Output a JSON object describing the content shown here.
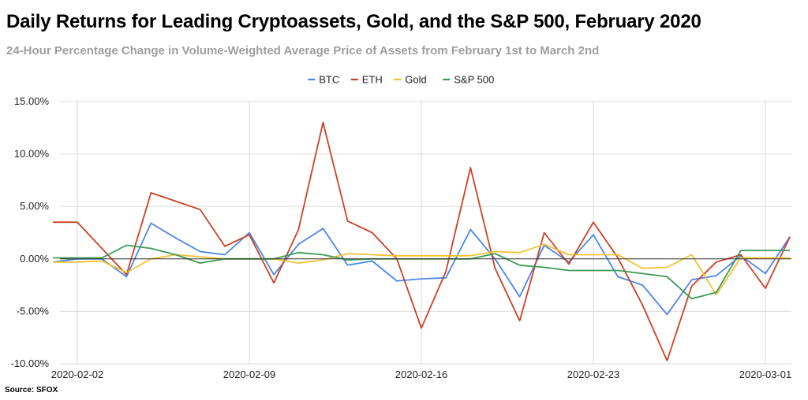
{
  "chart_data": {
    "type": "line",
    "title": "Daily Returns for Leading Cryptoassets, Gold, and the S&P 500, February 2020",
    "subtitle": "24-Hour Percentage Change in Volume-Weighted Average Price of Assets from February 1st to March 2nd",
    "source": "Source: SFOX",
    "x": [
      "2020-02-01",
      "2020-02-02",
      "2020-02-03",
      "2020-02-04",
      "2020-02-05",
      "2020-02-06",
      "2020-02-07",
      "2020-02-08",
      "2020-02-09",
      "2020-02-10",
      "2020-02-11",
      "2020-02-12",
      "2020-02-13",
      "2020-02-14",
      "2020-02-15",
      "2020-02-16",
      "2020-02-17",
      "2020-02-18",
      "2020-02-19",
      "2020-02-20",
      "2020-02-21",
      "2020-02-22",
      "2020-02-23",
      "2020-02-24",
      "2020-02-25",
      "2020-02-26",
      "2020-02-27",
      "2020-02-28",
      "2020-02-29",
      "2020-03-01",
      "2020-03-02"
    ],
    "xticks": [
      "2020-02-02",
      "2020-02-09",
      "2020-02-16",
      "2020-02-23",
      "2020-03-01"
    ],
    "ylim": [
      -10,
      15
    ],
    "yticks": [
      -10,
      -5,
      0,
      5,
      10,
      15
    ],
    "ytick_labels": [
      "-10.00%",
      "-5.00%",
      "0.00%",
      "5.00%",
      "10.00%",
      "15.00%"
    ],
    "grid": true,
    "legend_position": "top",
    "series": [
      {
        "name": "BTC",
        "color": "#4a86e8",
        "values": [
          -0.3,
          0.0,
          0.0,
          -1.7,
          3.4,
          2.0,
          0.7,
          0.4,
          2.5,
          -1.5,
          1.4,
          2.9,
          -0.6,
          -0.2,
          -2.1,
          -1.9,
          -1.8,
          2.8,
          0.0,
          -3.6,
          1.3,
          -0.3,
          2.3,
          -1.7,
          -2.5,
          -5.3,
          -2.0,
          -1.6,
          0.3,
          -1.4,
          2.1
        ]
      },
      {
        "name": "ETH",
        "color": "#cc4125",
        "values": [
          3.5,
          3.5,
          1.0,
          -1.5,
          6.3,
          5.5,
          4.7,
          1.2,
          2.3,
          -2.3,
          2.8,
          13.0,
          3.6,
          2.5,
          0.0,
          -6.6,
          -1.2,
          8.7,
          -0.9,
          -5.9,
          2.5,
          -0.5,
          3.5,
          0.1,
          -4.4,
          -9.7,
          -2.6,
          -0.3,
          0.4,
          -2.8,
          2.1
        ]
      },
      {
        "name": "Gold",
        "color": "#f1c232",
        "values": [
          -0.3,
          -0.3,
          -0.2,
          -1.3,
          0.0,
          0.4,
          0.2,
          0.0,
          0.0,
          0.0,
          -0.4,
          -0.1,
          0.5,
          0.4,
          0.3,
          0.3,
          0.3,
          0.3,
          0.7,
          0.6,
          1.4,
          0.4,
          0.4,
          0.4,
          -0.9,
          -0.8,
          0.4,
          -3.4,
          0.1,
          0.1,
          0.1
        ]
      },
      {
        "name": "S&P 500",
        "color": "#3d9a55",
        "values": [
          0.1,
          0.1,
          0.1,
          1.3,
          1.0,
          0.4,
          -0.4,
          0.0,
          0.0,
          0.0,
          0.6,
          0.4,
          -0.1,
          0.0,
          0.0,
          0.0,
          0.0,
          0.0,
          0.5,
          -0.6,
          -0.8,
          -1.1,
          -1.1,
          -1.1,
          -1.4,
          -1.7,
          -3.8,
          -3.2,
          0.8,
          0.8,
          0.8
        ]
      }
    ]
  }
}
